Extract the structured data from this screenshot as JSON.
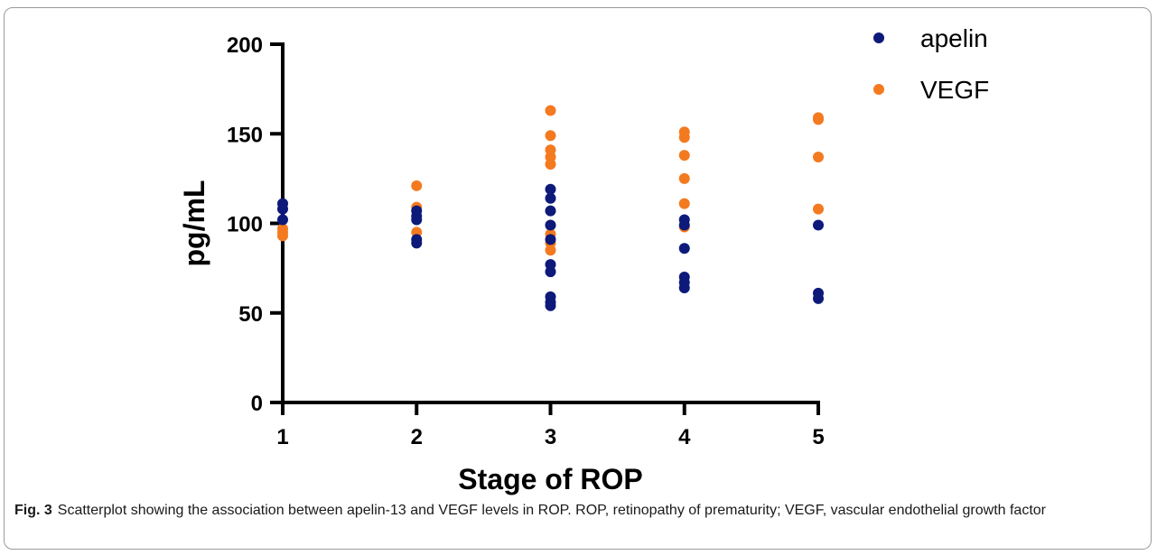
{
  "chart_data": {
    "type": "scatter",
    "xlabel": "Stage of ROP",
    "ylabel": "pg/mL",
    "xlim": [
      1,
      5
    ],
    "ylim": [
      0,
      200
    ],
    "x_ticks": [
      1,
      2,
      3,
      4,
      5
    ],
    "y_ticks": [
      0,
      50,
      100,
      150,
      200
    ],
    "grid": false,
    "legend_position": "top-right",
    "series": [
      {
        "name": "apelin",
        "color": "#0d1a7a",
        "points": [
          [
            1,
            111
          ],
          [
            1,
            108
          ],
          [
            1,
            102
          ],
          [
            2,
            107
          ],
          [
            2,
            104
          ],
          [
            2,
            102
          ],
          [
            2,
            91
          ],
          [
            2,
            89
          ],
          [
            3,
            119
          ],
          [
            3,
            114
          ],
          [
            3,
            107
          ],
          [
            3,
            99
          ],
          [
            3,
            91
          ],
          [
            3,
            77
          ],
          [
            3,
            73
          ],
          [
            3,
            59
          ],
          [
            3,
            56
          ],
          [
            3,
            54
          ],
          [
            4,
            102
          ],
          [
            4,
            99
          ],
          [
            4,
            86
          ],
          [
            4,
            70
          ],
          [
            4,
            67
          ],
          [
            4,
            64
          ],
          [
            5,
            99
          ],
          [
            5,
            61
          ],
          [
            5,
            58
          ]
        ]
      },
      {
        "name": "VEGF",
        "color": "#f47a20",
        "points": [
          [
            1,
            97
          ],
          [
            1,
            95
          ],
          [
            1,
            93
          ],
          [
            2,
            121
          ],
          [
            2,
            109
          ],
          [
            2,
            95
          ],
          [
            3,
            163
          ],
          [
            3,
            149
          ],
          [
            3,
            141
          ],
          [
            3,
            137
          ],
          [
            3,
            133
          ],
          [
            3,
            99
          ],
          [
            3,
            94
          ],
          [
            3,
            89
          ],
          [
            3,
            85
          ],
          [
            4,
            151
          ],
          [
            4,
            148
          ],
          [
            4,
            138
          ],
          [
            4,
            125
          ],
          [
            4,
            111
          ],
          [
            4,
            98
          ],
          [
            5,
            159
          ],
          [
            5,
            158
          ],
          [
            5,
            137
          ],
          [
            5,
            108
          ]
        ]
      }
    ]
  },
  "caption": {
    "label": "Fig. 3",
    "text": "Scatterplot showing the association between apelin-13 and VEGF levels in ROP. ROP, retinopathy of prematurity; VEGF, vascular endothelial growth factor"
  }
}
